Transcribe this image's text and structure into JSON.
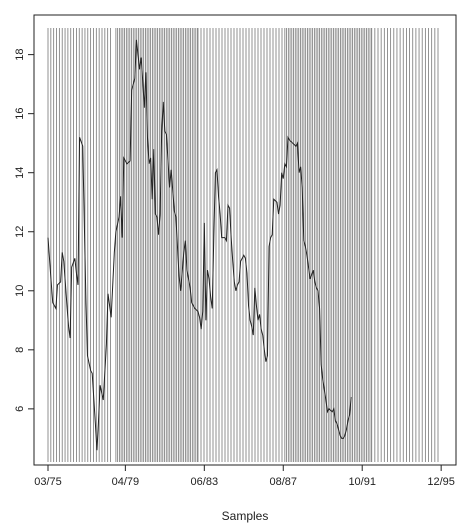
{
  "chart_data": {
    "type": "line",
    "title": "",
    "xlabel": "Samples",
    "ylabel": "",
    "xlim": [
      0,
      247
    ],
    "ylim": [
      4.2,
      18.8
    ],
    "x_ticks": [
      {
        "label": "03/75",
        "x": 0
      },
      {
        "label": "04/79",
        "x": 49
      },
      {
        "label": "06/83",
        "x": 99
      },
      {
        "label": "08/87",
        "x": 149
      },
      {
        "label": "10/91",
        "x": 199
      },
      {
        "label": "12/95",
        "x": 249
      }
    ],
    "y_ticks": [
      6,
      8,
      10,
      12,
      14,
      16,
      18
    ],
    "colors": {
      "line": "#222222",
      "vlines": "#777777",
      "axis": "#222222"
    },
    "series": [
      {
        "name": "",
        "points": [
          [
            0,
            11.8
          ],
          [
            2,
            10.3
          ],
          [
            3,
            9.6
          ],
          [
            5,
            9.4
          ],
          [
            6,
            10.2
          ],
          [
            8,
            10.3
          ],
          [
            9,
            11.3
          ],
          [
            10,
            11.0
          ],
          [
            12,
            9.5
          ],
          [
            13,
            8.8
          ],
          [
            14,
            8.4
          ],
          [
            15,
            10.8
          ],
          [
            17,
            11.1
          ],
          [
            18,
            10.6
          ],
          [
            19,
            10.2
          ],
          [
            20,
            15.2
          ],
          [
            22,
            14.9
          ],
          [
            24,
            9.7
          ],
          [
            25,
            7.8
          ],
          [
            27,
            7.3
          ],
          [
            28,
            7.2
          ],
          [
            30,
            5.5
          ],
          [
            31,
            4.6
          ],
          [
            32,
            5.6
          ],
          [
            33,
            6.8
          ],
          [
            35,
            6.3
          ],
          [
            37,
            8.2
          ],
          [
            38,
            9.9
          ],
          [
            40,
            9.1
          ],
          [
            42,
            11.3
          ],
          [
            43,
            12.0
          ],
          [
            45,
            12.5
          ],
          [
            46,
            13.2
          ],
          [
            47,
            11.8
          ],
          [
            48,
            14.5
          ],
          [
            50,
            14.3
          ],
          [
            52,
            14.4
          ],
          [
            53,
            16.8
          ],
          [
            55,
            17.2
          ],
          [
            56,
            18.5
          ],
          [
            58,
            17.5
          ],
          [
            59,
            17.9
          ],
          [
            60,
            17.1
          ],
          [
            61,
            16.2
          ],
          [
            62,
            17.4
          ],
          [
            63,
            15.2
          ],
          [
            64,
            14.3
          ],
          [
            65,
            14.5
          ],
          [
            66,
            13.1
          ],
          [
            67,
            14.8
          ],
          [
            68,
            12.6
          ],
          [
            69,
            12.5
          ],
          [
            70,
            11.9
          ],
          [
            71,
            12.6
          ],
          [
            72,
            15.4
          ],
          [
            73,
            16.4
          ],
          [
            74,
            15.4
          ],
          [
            75,
            15.3
          ],
          [
            76,
            14.4
          ],
          [
            77,
            13.5
          ],
          [
            78,
            14.1
          ],
          [
            80,
            12.7
          ],
          [
            81,
            12.5
          ],
          [
            82,
            11.5
          ],
          [
            83,
            10.5
          ],
          [
            84,
            10.0
          ],
          [
            86,
            11.3
          ],
          [
            87,
            11.7
          ],
          [
            88,
            10.7
          ],
          [
            89,
            10.4
          ],
          [
            90,
            10.1
          ],
          [
            91,
            9.6
          ],
          [
            92,
            9.5
          ],
          [
            93,
            9.4
          ],
          [
            95,
            9.3
          ],
          [
            96,
            9.1
          ],
          [
            97,
            8.7
          ],
          [
            98,
            9.3
          ],
          [
            99,
            12.3
          ],
          [
            100,
            9.0
          ],
          [
            101,
            10.7
          ],
          [
            102,
            10.4
          ],
          [
            103,
            9.8
          ],
          [
            104,
            9.4
          ],
          [
            105,
            11.8
          ],
          [
            106,
            14.0
          ],
          [
            107,
            14.1
          ],
          [
            108,
            13.2
          ],
          [
            109,
            12.6
          ],
          [
            110,
            11.8
          ],
          [
            112,
            11.8
          ],
          [
            113,
            11.7
          ],
          [
            114,
            12.9
          ],
          [
            115,
            12.8
          ],
          [
            116,
            11.8
          ],
          [
            117,
            11.0
          ],
          [
            118,
            10.3
          ],
          [
            119,
            10.0
          ],
          [
            120,
            10.2
          ],
          [
            121,
            10.3
          ],
          [
            122,
            11.0
          ],
          [
            124,
            11.2
          ],
          [
            125,
            11.1
          ],
          [
            126,
            10.6
          ],
          [
            127,
            9.5
          ],
          [
            128,
            9.0
          ],
          [
            129,
            8.8
          ],
          [
            130,
            8.5
          ],
          [
            131,
            10.1
          ],
          [
            132,
            9.5
          ],
          [
            133,
            9.0
          ],
          [
            134,
            9.2
          ],
          [
            135,
            8.7
          ],
          [
            136,
            8.5
          ],
          [
            137,
            8.0
          ],
          [
            138,
            7.6
          ],
          [
            139,
            7.8
          ],
          [
            140,
            11.5
          ],
          [
            141,
            11.8
          ],
          [
            142,
            11.9
          ],
          [
            143,
            13.1
          ],
          [
            145,
            13.0
          ],
          [
            146,
            12.6
          ],
          [
            147,
            12.9
          ],
          [
            148,
            14.0
          ],
          [
            149,
            13.8
          ],
          [
            150,
            14.3
          ],
          [
            151,
            14.2
          ],
          [
            152,
            15.2
          ],
          [
            153,
            15.1
          ],
          [
            155,
            15.0
          ],
          [
            157,
            14.9
          ],
          [
            158,
            15.0
          ],
          [
            159,
            14.0
          ],
          [
            160,
            14.2
          ],
          [
            161,
            13.5
          ],
          [
            162,
            11.7
          ],
          [
            163,
            11.5
          ],
          [
            164,
            11.2
          ],
          [
            165,
            10.8
          ],
          [
            166,
            10.4
          ],
          [
            168,
            10.7
          ],
          [
            169,
            10.3
          ],
          [
            170,
            10.1
          ],
          [
            171,
            10.0
          ],
          [
            172,
            9.4
          ],
          [
            173,
            7.5
          ],
          [
            174,
            7.0
          ],
          [
            176,
            6.3
          ],
          [
            177,
            5.9
          ],
          [
            178,
            6.0
          ],
          [
            180,
            5.9
          ],
          [
            181,
            6.0
          ],
          [
            182,
            5.6
          ],
          [
            183,
            5.5
          ],
          [
            184,
            5.3
          ],
          [
            185,
            5.1
          ],
          [
            186,
            5.0
          ],
          [
            187,
            5.0
          ],
          [
            188,
            5.1
          ],
          [
            189,
            5.3
          ],
          [
            190,
            5.6
          ],
          [
            191,
            5.8
          ],
          [
            192,
            6.4
          ]
        ]
      }
    ],
    "vertical_line_ranges": [
      {
        "start": 0,
        "end": 40,
        "step": 1.8
      },
      {
        "start": 43,
        "end": 95,
        "step": 1.1
      },
      {
        "start": 95,
        "end": 150,
        "step": 1.9
      },
      {
        "start": 150,
        "end": 205,
        "step": 1.1
      },
      {
        "start": 205,
        "end": 247,
        "step": 2.0
      }
    ]
  }
}
